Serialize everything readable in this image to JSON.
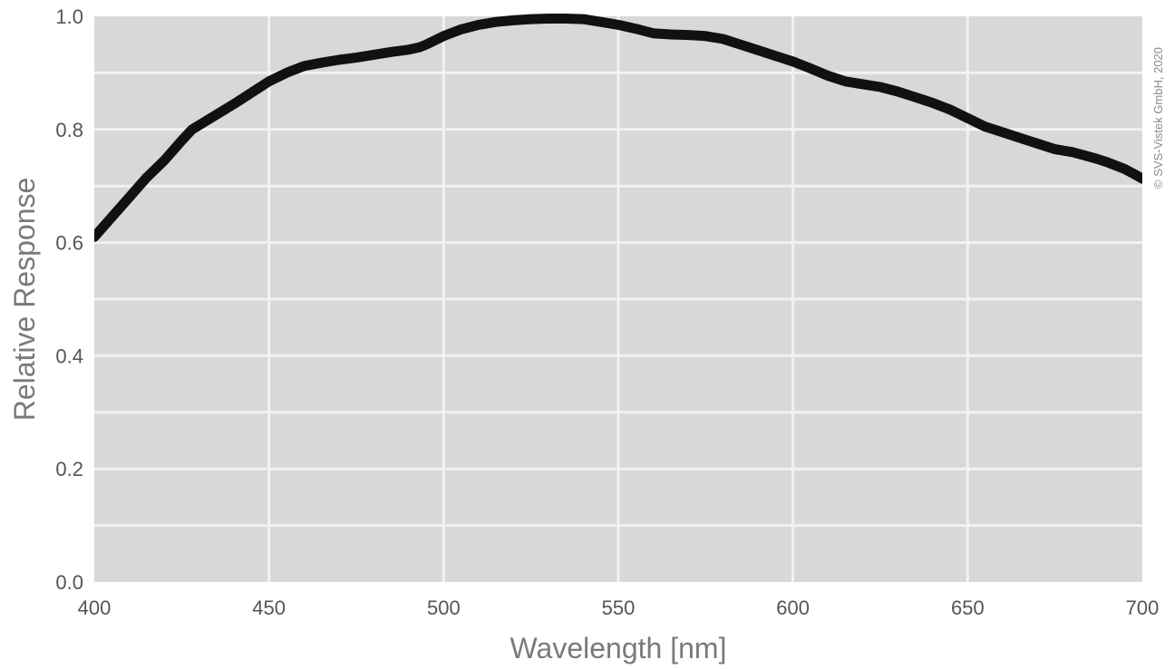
{
  "chart_data": {
    "type": "line",
    "title": "",
    "xlabel": "Wavelength [nm]",
    "ylabel": "Relative Response",
    "xlim": [
      400,
      700
    ],
    "ylim": [
      0.0,
      1.0
    ],
    "x_ticks": [
      "400",
      "450",
      "500",
      "550",
      "600",
      "650",
      "700"
    ],
    "y_ticks": [
      "0.0",
      "0.2",
      "0.4",
      "0.6",
      "0.8",
      "1.0"
    ],
    "x_tick_values": [
      400,
      450,
      500,
      550,
      600,
      650,
      700
    ],
    "y_tick_values": [
      0.0,
      0.2,
      0.4,
      0.6,
      0.8,
      1.0
    ],
    "y_minor_values": [
      0.1,
      0.3,
      0.5,
      0.7,
      0.9
    ],
    "grid": true,
    "copyright": "© SVS-Vistek GmbH, 2020",
    "series": [
      {
        "x": [
          400,
          405,
          410,
          415,
          420,
          425,
          428,
          432,
          436,
          440,
          445,
          450,
          455,
          460,
          465,
          470,
          475,
          480,
          485,
          490,
          493,
          495,
          500,
          505,
          510,
          515,
          520,
          525,
          530,
          535,
          540,
          545,
          550,
          555,
          560,
          565,
          570,
          575,
          580,
          585,
          590,
          595,
          600,
          605,
          610,
          615,
          620,
          625,
          630,
          635,
          640,
          645,
          650,
          655,
          660,
          665,
          670,
          675,
          680,
          683,
          687,
          690,
          695,
          698,
          700
        ],
        "y": [
          0.61,
          0.645,
          0.68,
          0.715,
          0.745,
          0.78,
          0.8,
          0.815,
          0.83,
          0.845,
          0.865,
          0.885,
          0.9,
          0.912,
          0.918,
          0.923,
          0.927,
          0.932,
          0.937,
          0.941,
          0.945,
          0.95,
          0.965,
          0.977,
          0.985,
          0.99,
          0.993,
          0.995,
          0.996,
          0.996,
          0.995,
          0.99,
          0.985,
          0.978,
          0.97,
          0.968,
          0.967,
          0.965,
          0.96,
          0.95,
          0.94,
          0.93,
          0.92,
          0.908,
          0.895,
          0.885,
          0.88,
          0.875,
          0.867,
          0.857,
          0.847,
          0.835,
          0.82,
          0.805,
          0.795,
          0.785,
          0.775,
          0.765,
          0.76,
          0.755,
          0.748,
          0.742,
          0.73,
          0.72,
          0.713
        ],
        "color": "#111111"
      }
    ]
  }
}
